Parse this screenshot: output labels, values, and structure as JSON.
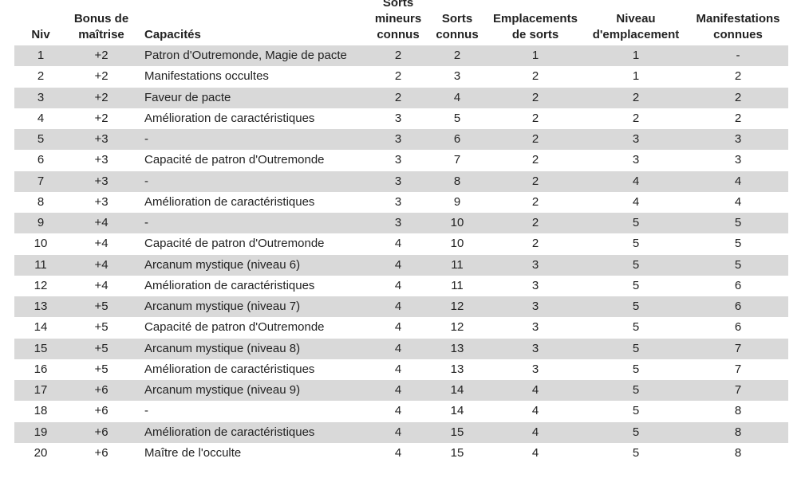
{
  "table": {
    "header": [
      [
        "Niv"
      ],
      [
        "Bonus de",
        "maîtrise"
      ],
      [
        "Capacités"
      ],
      [
        "Sorts",
        "mineurs",
        "connus"
      ],
      [
        "Sorts",
        "connus"
      ],
      [
        "Emplacements",
        "de sorts"
      ],
      [
        "Niveau",
        "d'emplacement"
      ],
      [
        "Manifestations",
        "connues"
      ]
    ],
    "rows": [
      [
        "1",
        "+2",
        "Patron d'Outremonde, Magie de pacte",
        "2",
        "2",
        "1",
        "1",
        "-"
      ],
      [
        "2",
        "+2",
        "Manifestations occultes",
        "2",
        "3",
        "2",
        "1",
        "2"
      ],
      [
        "3",
        "+2",
        "Faveur de pacte",
        "2",
        "4",
        "2",
        "2",
        "2"
      ],
      [
        "4",
        "+2",
        "Amélioration de caractéristiques",
        "3",
        "5",
        "2",
        "2",
        "2"
      ],
      [
        "5",
        "+3",
        "-",
        "3",
        "6",
        "2",
        "3",
        "3"
      ],
      [
        "6",
        "+3",
        "Capacité de patron d'Outremonde",
        "3",
        "7",
        "2",
        "3",
        "3"
      ],
      [
        "7",
        "+3",
        "-",
        "3",
        "8",
        "2",
        "4",
        "4"
      ],
      [
        "8",
        "+3",
        "Amélioration de caractéristiques",
        "3",
        "9",
        "2",
        "4",
        "4"
      ],
      [
        "9",
        "+4",
        "-",
        "3",
        "10",
        "2",
        "5",
        "5"
      ],
      [
        "10",
        "+4",
        "Capacité de patron d'Outremonde",
        "4",
        "10",
        "2",
        "5",
        "5"
      ],
      [
        "11",
        "+4",
        "Arcanum mystique (niveau 6)",
        "4",
        "11",
        "3",
        "5",
        "5"
      ],
      [
        "12",
        "+4",
        "Amélioration de caractéristiques",
        "4",
        "11",
        "3",
        "5",
        "6"
      ],
      [
        "13",
        "+5",
        "Arcanum mystique (niveau 7)",
        "4",
        "12",
        "3",
        "5",
        "6"
      ],
      [
        "14",
        "+5",
        "Capacité de patron d'Outremonde",
        "4",
        "12",
        "3",
        "5",
        "6"
      ],
      [
        "15",
        "+5",
        "Arcanum mystique (niveau 8)",
        "4",
        "13",
        "3",
        "5",
        "7"
      ],
      [
        "16",
        "+5",
        "Amélioration de caractéristiques",
        "4",
        "13",
        "3",
        "5",
        "7"
      ],
      [
        "17",
        "+6",
        "Arcanum mystique (niveau 9)",
        "4",
        "14",
        "4",
        "5",
        "7"
      ],
      [
        "18",
        "+6",
        "-",
        "4",
        "14",
        "4",
        "5",
        "8"
      ],
      [
        "19",
        "+6",
        "Amélioration de caractéristiques",
        "4",
        "15",
        "4",
        "5",
        "8"
      ],
      [
        "20",
        "+6",
        "Maître de l'occulte",
        "4",
        "15",
        "4",
        "5",
        "8"
      ]
    ]
  }
}
